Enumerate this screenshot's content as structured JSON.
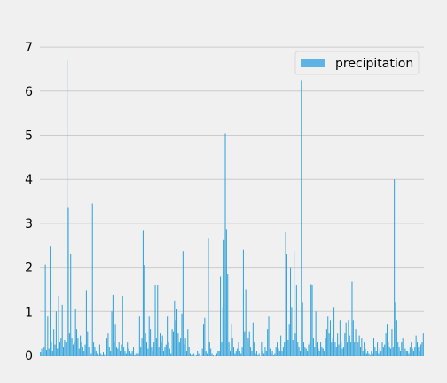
{
  "chart_data": {
    "type": "bar",
    "title": "",
    "xlabel": "",
    "ylabel": "",
    "ylim": [
      0,
      7.35
    ],
    "yticks": [
      0,
      1,
      2,
      3,
      4,
      5,
      6,
      7
    ],
    "ytick_labels": [
      "0",
      "1",
      "2",
      "3",
      "4",
      "5",
      "6",
      "7"
    ],
    "grid": "horizontal",
    "x_tick_labels_visible": false,
    "legend": {
      "placement": "top-right",
      "entries": [
        "precipitation"
      ]
    },
    "colors": {
      "bar": "#30a2da",
      "legend_patch": "#5db3e3",
      "grid": "#cbcbcb",
      "background": "#f0f0f0"
    },
    "series": [
      {
        "name": "precipitation",
        "note_on_values": "approximate per-day precipitation readings in chronological order (x tick labels are hidden in the original)",
        "values": [
          0.08,
          0.15,
          0.05,
          0.2,
          2.06,
          0.12,
          0.9,
          0.15,
          2.47,
          0.3,
          0.1,
          0.6,
          0.25,
          1.0,
          0.15,
          1.35,
          0.3,
          0.4,
          1.15,
          0.2,
          0.35,
          0.3,
          6.7,
          3.35,
          0.5,
          2.3,
          0.4,
          0.25,
          0.3,
          1.05,
          0.6,
          0.4,
          0.15,
          0.45,
          0.3,
          0.2,
          0.1,
          0.25,
          1.48,
          0.55,
          0.2,
          0.15,
          0.05,
          3.45,
          0.3,
          0.2,
          0.1,
          0.05,
          0.02,
          0.25,
          0.05,
          0.02,
          0.08,
          0.03,
          0.0,
          0.4,
          0.5,
          0.2,
          0.1,
          1.0,
          1.37,
          0.3,
          0.7,
          0.2,
          0.15,
          0.3,
          0.1,
          0.25,
          1.35,
          0.2,
          0.1,
          0.05,
          0.3,
          0.15,
          0.1,
          0.05,
          0.1,
          0.2,
          0.02,
          0.05,
          0.1,
          0.05,
          0.9,
          0.2,
          0.4,
          2.85,
          2.05,
          0.5,
          0.3,
          0.15,
          0.9,
          0.6,
          0.2,
          0.1,
          0.3,
          1.6,
          0.4,
          1.6,
          0.2,
          0.5,
          0.3,
          0.45,
          0.1,
          0.2,
          0.25,
          0.9,
          0.3,
          0.15,
          0.05,
          0.6,
          0.55,
          1.25,
          0.8,
          1.05,
          0.5,
          0.3,
          0.4,
          0.95,
          2.37,
          0.25,
          0.4,
          0.1,
          0.6,
          0.2,
          0.05,
          0.02,
          0.03,
          0.05,
          0.0,
          0.02,
          0.1,
          0.05,
          0.02,
          0.0,
          0.15,
          0.7,
          0.85,
          0.1,
          0.05,
          2.65,
          0.3,
          0.15,
          0.05,
          0.02,
          0.0,
          0.02,
          0.05,
          0.1,
          0.1,
          1.8,
          0.3,
          1.1,
          2.62,
          5.04,
          2.87,
          1.85,
          0.3,
          0.1,
          0.7,
          0.4,
          0.2,
          0.05,
          0.1,
          0.15,
          0.3,
          0.1,
          0.05,
          0.2,
          2.4,
          0.55,
          1.5,
          0.3,
          0.4,
          0.55,
          0.2,
          0.1,
          0.75,
          0.3,
          0.05,
          0.1,
          0.02,
          0.05,
          0.0,
          0.3,
          0.1,
          0.05,
          0.2,
          0.1,
          0.6,
          0.9,
          0.15,
          0.05,
          0.1,
          0.02,
          0.05,
          0.2,
          0.3,
          0.15,
          0.1,
          0.45,
          0.1,
          0.2,
          0.3,
          2.8,
          2.3,
          0.35,
          0.7,
          2.0,
          1.1,
          0.35,
          2.37,
          0.5,
          1.6,
          0.3,
          0.2,
          0.1,
          6.25,
          1.2,
          0.3,
          0.2,
          0.15,
          0.1,
          0.25,
          0.3,
          1.62,
          1.6,
          0.4,
          0.2,
          1.0,
          0.3,
          0.15,
          0.1,
          0.3,
          0.2,
          0.15,
          0.1,
          0.4,
          0.6,
          0.9,
          0.5,
          0.8,
          0.3,
          0.4,
          1.1,
          0.3,
          0.2,
          0.5,
          0.25,
          0.8,
          0.3,
          0.15,
          0.2,
          0.5,
          0.75,
          0.3,
          0.8,
          0.45,
          0.3,
          1.68,
          0.8,
          0.3,
          0.6,
          0.2,
          0.3,
          0.45,
          0.2,
          0.4,
          0.1,
          0.3,
          0.15,
          0.05,
          0.1,
          0.05,
          0.02,
          0.1,
          0.05,
          0.4,
          0.2,
          0.1,
          0.3,
          0.05,
          0.15,
          0.1,
          0.3,
          0.2,
          0.25,
          0.5,
          0.7,
          0.3,
          0.2,
          0.15,
          0.6,
          0.2,
          4.0,
          1.2,
          0.8,
          0.3,
          0.2,
          0.1,
          0.3,
          0.4,
          0.2,
          0.15,
          0.1,
          0.1,
          0.05,
          0.2,
          0.3,
          0.15,
          0.1,
          0.2,
          0.45,
          0.3,
          0.2,
          0.1,
          0.25,
          0.3,
          0.5
        ]
      }
    ]
  }
}
